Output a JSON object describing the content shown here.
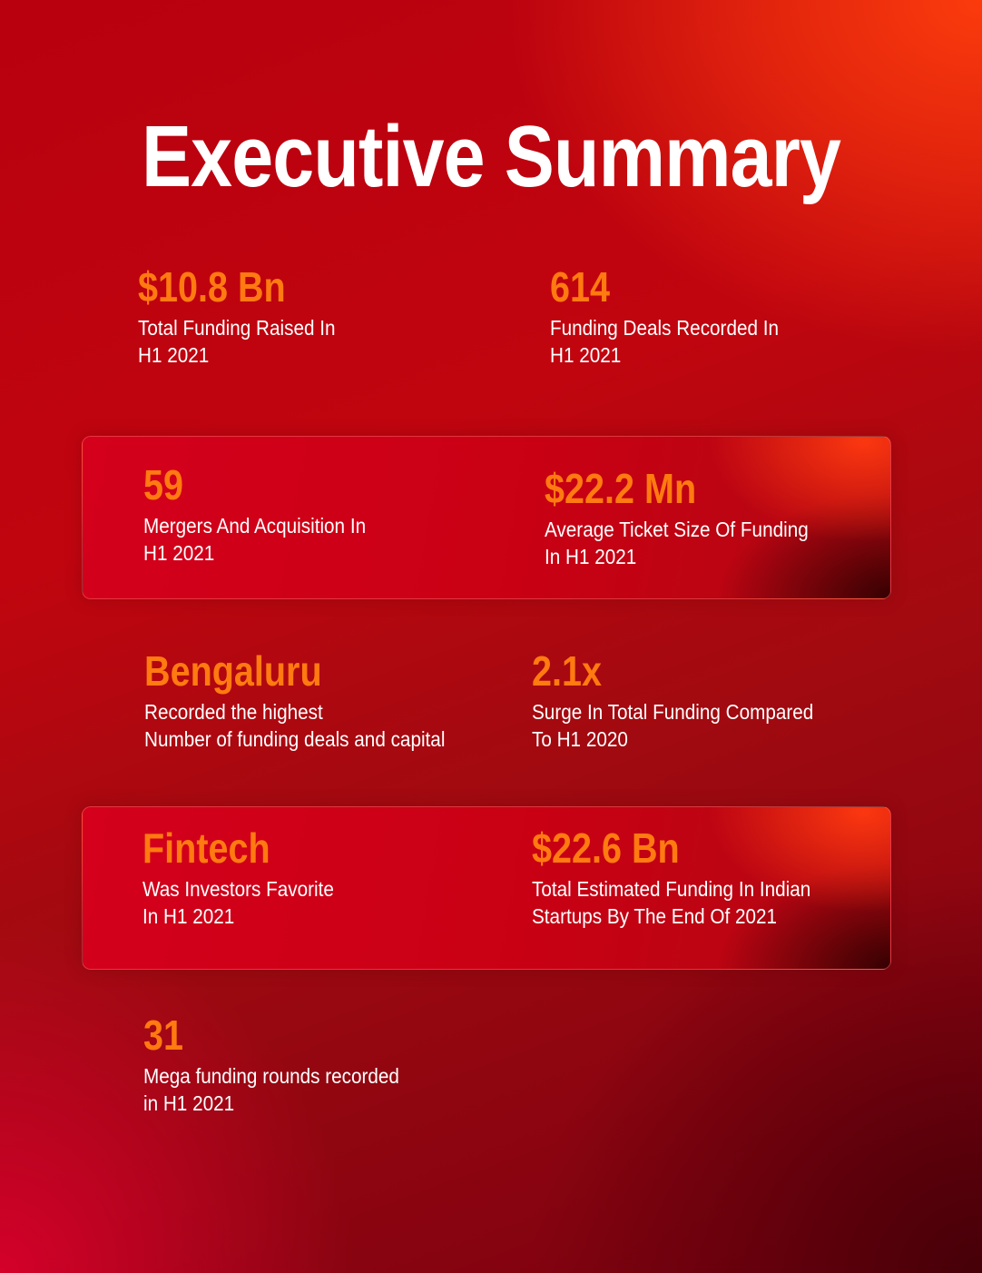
{
  "title": "Executive Summary",
  "stats": [
    {
      "value": "$10.8 Bn",
      "line1": "Total Funding Raised In",
      "line2": "H1 2021"
    },
    {
      "value": "614",
      "line1": "Funding Deals Recorded In",
      "line2": "H1 2021"
    },
    {
      "value": "59",
      "line1": "Mergers And Acquisition In",
      "line2": "H1 2021"
    },
    {
      "value": "$22.2 Mn",
      "line1": "Average Ticket Size Of Funding",
      "line2": "In H1 2021"
    },
    {
      "value": "Bengaluru",
      "line1": "Recorded the highest",
      "line2": "Number of funding deals and capital"
    },
    {
      "value": "2.1x",
      "line1": "Surge In Total Funding Compared",
      "line2": "To H1 2020"
    },
    {
      "value": "Fintech",
      "line1": "Was Investors Favorite",
      "line2": "In H1 2021"
    },
    {
      "value": "$22.6 Bn",
      "line1": "Total Estimated Funding In Indian",
      "line2": "Startups By The End Of 2021"
    },
    {
      "value": "31",
      "line1": "Mega funding rounds recorded",
      "line2": "in H1 2021"
    }
  ],
  "colors": {
    "accent": "#ff7a10",
    "text": "#ffffff",
    "background": "#c1050f"
  }
}
